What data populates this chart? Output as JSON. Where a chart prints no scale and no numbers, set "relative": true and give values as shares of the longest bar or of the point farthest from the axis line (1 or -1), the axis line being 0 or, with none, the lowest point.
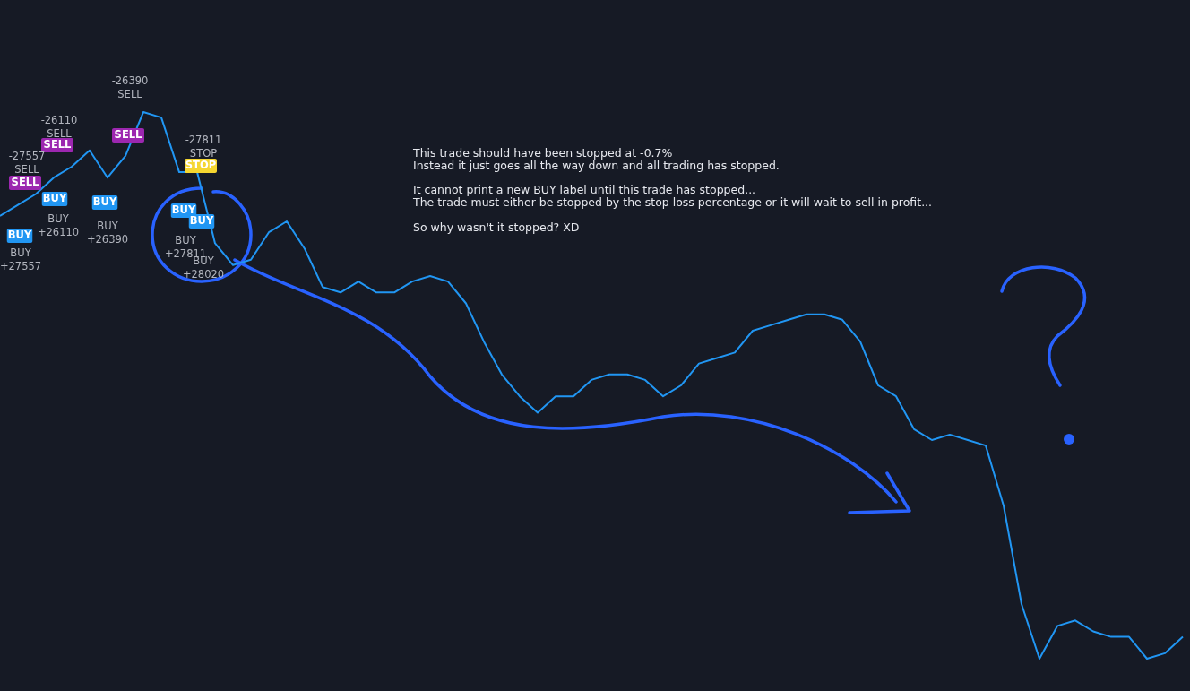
{
  "chart_data": {
    "type": "line",
    "relative": true,
    "categories": [
      null,
      null,
      null,
      null,
      null,
      null,
      null,
      null,
      null,
      null,
      null,
      null,
      null,
      null,
      null,
      null,
      null,
      null,
      null,
      null,
      null,
      null,
      null,
      null,
      null,
      null,
      null,
      null,
      null,
      null,
      null,
      null,
      null,
      null,
      null,
      null,
      null,
      null,
      null,
      null,
      null,
      null,
      null,
      null,
      null,
      null,
      null,
      null,
      null,
      null,
      null,
      null,
      null,
      null,
      null,
      null,
      null,
      null,
      null,
      null,
      null,
      null,
      null,
      null,
      null,
      null,
      null
    ],
    "series": [
      {
        "color": "#2196f3",
        "values": [
          0.81,
          0.83,
          0.85,
          0.88,
          0.9,
          0.93,
          0.88,
          0.92,
          1.0,
          0.99,
          0.89,
          0.89,
          0.76,
          0.72,
          0.73,
          0.78,
          0.8,
          0.75,
          0.68,
          0.67,
          0.69,
          0.67,
          0.67,
          0.69,
          0.7,
          0.69,
          0.65,
          0.58,
          0.52,
          0.48,
          0.45,
          0.48,
          0.48,
          0.51,
          0.52,
          0.52,
          0.51,
          0.48,
          0.5,
          0.54,
          0.55,
          0.56,
          0.6,
          0.61,
          0.62,
          0.63,
          0.63,
          0.62,
          0.58,
          0.5,
          0.48,
          0.42,
          0.4,
          0.41,
          0.4,
          0.39,
          0.28,
          0.1,
          0.0,
          0.06,
          0.07,
          0.05,
          0.04,
          0.04,
          0.0,
          0.01,
          0.04
        ]
      }
    ],
    "annotations": [
      "This trade should have been stopped at -0.7%",
      "Instead it just goes all the way down and all trading has stopped.",
      "It cannot print a new BUY label until this trade has stopped...",
      "The trade must either be stopped by the stop loss percentage or it will wait to sell in profit...",
      "So why wasn't it stopped? XD",
      "-27557\nSELL",
      "-26110\nSELL",
      "-26390\nSELL",
      "-27811\nSTOP",
      "BUY\n+27557",
      "BUY\n+26110",
      "BUY\n+26390",
      "BUY\n+27811",
      "BUY\n+28020",
      "SELL",
      "SELL",
      "SELL",
      "STOP",
      "BUY",
      "BUY",
      "BUY",
      "BUY",
      "BUY"
    ]
  }
}
